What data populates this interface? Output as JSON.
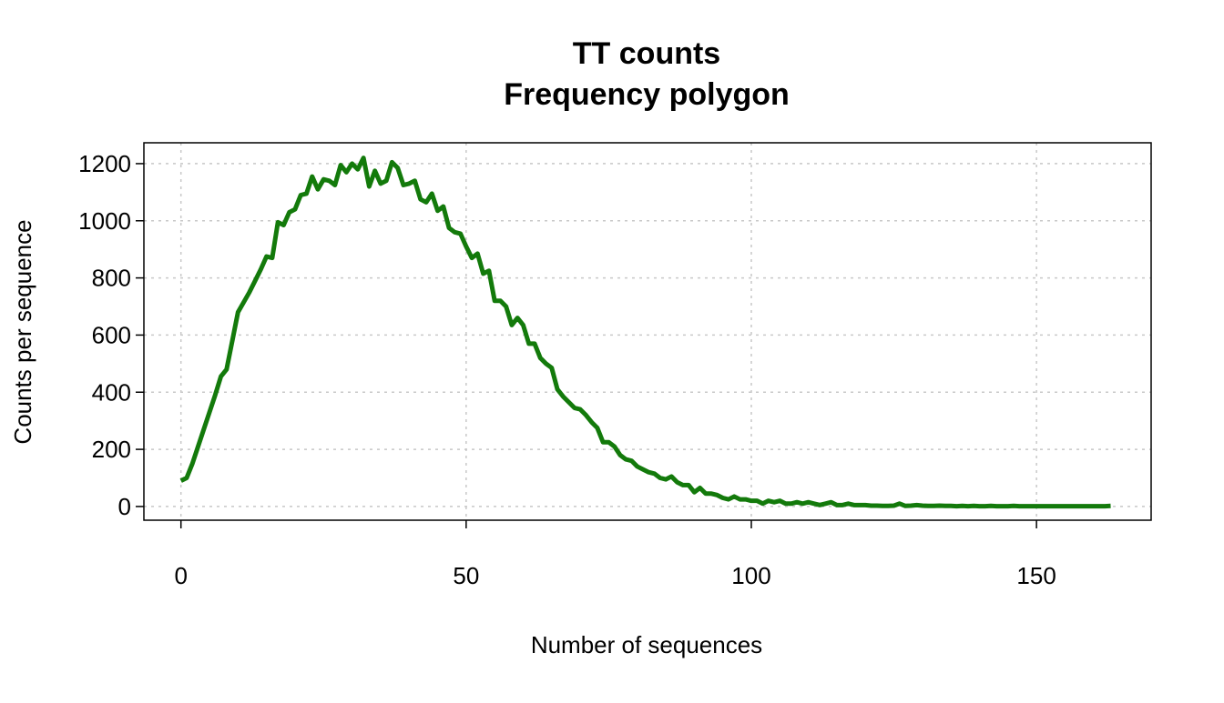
{
  "chart_data": {
    "type": "line",
    "title": "TT counts",
    "subtitle": "Frequency polygon",
    "xlabel": "Number of sequences",
    "ylabel": "Counts per sequence",
    "x": [
      0,
      1,
      2,
      3,
      4,
      5,
      6,
      7,
      8,
      9,
      10,
      11,
      12,
      13,
      14,
      15,
      16,
      17,
      18,
      19,
      20,
      21,
      22,
      23,
      24,
      25,
      26,
      27,
      28,
      29,
      30,
      31,
      32,
      33,
      34,
      35,
      36,
      37,
      38,
      39,
      40,
      41,
      42,
      43,
      44,
      45,
      46,
      47,
      48,
      49,
      50,
      51,
      52,
      53,
      54,
      55,
      56,
      57,
      58,
      59,
      60,
      61,
      62,
      63,
      64,
      65,
      66,
      67,
      68,
      69,
      70,
      71,
      72,
      73,
      74,
      75,
      76,
      77,
      78,
      79,
      80,
      81,
      82,
      83,
      84,
      85,
      86,
      87,
      88,
      89,
      90,
      91,
      92,
      93,
      94,
      95,
      96,
      97,
      98,
      99,
      100,
      101,
      102,
      103,
      104,
      105,
      106,
      107,
      108,
      109,
      110,
      111,
      112,
      113,
      114,
      115,
      116,
      117,
      118,
      119,
      120,
      121,
      122,
      123,
      124,
      125,
      126,
      127,
      128,
      129,
      130,
      131,
      132,
      133,
      134,
      135,
      136,
      137,
      138,
      139,
      140,
      141,
      142,
      143,
      144,
      145,
      146,
      147,
      148,
      149,
      150,
      151,
      152,
      153,
      154,
      155,
      156,
      157,
      158,
      159,
      160,
      161,
      162,
      163
    ],
    "series": [
      {
        "color": "#137a0b",
        "values": [
          90,
          100,
          150,
          210,
          270,
          330,
          390,
          455,
          480,
          580,
          680,
          715,
          750,
          790,
          830,
          875,
          870,
          995,
          985,
          1030,
          1040,
          1090,
          1095,
          1155,
          1110,
          1145,
          1140,
          1125,
          1195,
          1170,
          1200,
          1180,
          1220,
          1120,
          1175,
          1130,
          1140,
          1205,
          1185,
          1125,
          1130,
          1140,
          1075,
          1065,
          1095,
          1035,
          1050,
          975,
          960,
          955,
          910,
          870,
          885,
          815,
          825,
          720,
          720,
          700,
          635,
          660,
          635,
          570,
          570,
          520,
          500,
          485,
          410,
          385,
          365,
          345,
          340,
          320,
          295,
          275,
          225,
          225,
          210,
          180,
          165,
          160,
          140,
          130,
          120,
          115,
          100,
          95,
          105,
          85,
          75,
          75,
          50,
          65,
          45,
          45,
          40,
          30,
          25,
          35,
          25,
          25,
          20,
          20,
          10,
          20,
          15,
          20,
          10,
          10,
          15,
          10,
          15,
          10,
          5,
          10,
          15,
          5,
          5,
          10,
          5,
          5,
          5,
          3,
          3,
          2,
          2,
          3,
          10,
          2,
          3,
          5,
          3,
          2,
          2,
          3,
          2,
          2,
          1,
          2,
          1,
          2,
          1,
          1,
          2,
          1,
          1,
          1,
          2,
          1,
          1,
          1,
          1,
          1,
          1,
          1,
          1,
          1,
          1,
          1,
          1,
          1,
          1,
          1,
          1,
          2
        ]
      }
    ],
    "xlim": [
      -6.5,
      170.1
    ],
    "ylim": [
      -48,
      1273
    ],
    "xticks": [
      0,
      50,
      100,
      150
    ],
    "yticks": [
      0,
      200,
      400,
      600,
      800,
      1000,
      1200
    ],
    "grid": true
  }
}
